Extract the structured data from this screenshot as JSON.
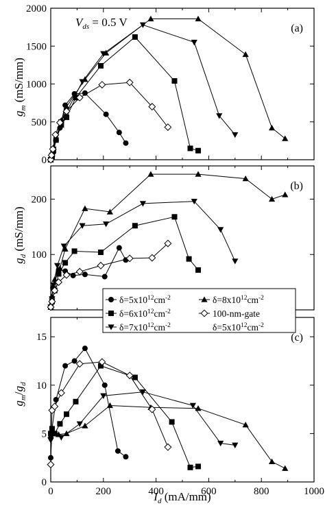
{
  "chart_data": [
    {
      "type": "line",
      "panel_label": "(a)",
      "annotation": "V_ds = 0.5 V",
      "xlabel": "",
      "ylabel": "g_m (mS/mm)",
      "xlim": [
        0,
        1000
      ],
      "ylim": [
        0,
        2000
      ],
      "yticks": [
        "0",
        "500",
        "1000",
        "1500",
        "2000"
      ],
      "series": [
        {
          "name": "δ=5x10¹²cm⁻²",
          "marker": "circle",
          "x": [
            0,
            5,
            10,
            20,
            35,
            55,
            90,
            130,
            210,
            260,
            285
          ],
          "y": [
            0,
            30,
            100,
            260,
            420,
            720,
            870,
            880,
            600,
            360,
            220
          ]
        },
        {
          "name": "δ=6x10¹²cm⁻²",
          "marker": "square",
          "x": [
            0,
            5,
            10,
            20,
            40,
            60,
            95,
            190,
            320,
            470,
            530,
            560
          ],
          "y": [
            0,
            40,
            120,
            260,
            460,
            560,
            820,
            1240,
            1620,
            1040,
            150,
            120
          ]
        },
        {
          "name": "δ=7x10¹²cm⁻²",
          "marker": "triangle-down",
          "x": [
            0,
            5,
            10,
            20,
            40,
            120,
            200,
            350,
            545,
            640,
            700
          ],
          "y": [
            0,
            60,
            140,
            300,
            500,
            1030,
            1400,
            1780,
            1550,
            580,
            330
          ]
        },
        {
          "name": "δ=8x10¹²cm⁻²",
          "marker": "triangle-up",
          "x": [
            0,
            5,
            10,
            20,
            40,
            60,
            130,
            210,
            380,
            560,
            740,
            840,
            890
          ],
          "y": [
            0,
            70,
            160,
            280,
            520,
            700,
            1060,
            1410,
            1860,
            1860,
            1390,
            420,
            280
          ]
        },
        {
          "name": "100-nm-gate δ=5x10¹²cm⁻²",
          "marker": "diamond",
          "x": [
            0,
            3,
            8,
            18,
            35,
            60,
            110,
            195,
            300,
            385,
            445
          ],
          "y": [
            0,
            60,
            140,
            330,
            490,
            640,
            820,
            990,
            1020,
            700,
            430
          ]
        }
      ]
    },
    {
      "type": "line",
      "panel_label": "(b)",
      "xlabel": "",
      "ylabel": "g_d (mS/mm)",
      "xlim": [
        0,
        1000
      ],
      "ylim": [
        0,
        260
      ],
      "yticks": [
        "100",
        "200"
      ],
      "series": [
        {
          "name": "δ=5x10¹²cm⁻²",
          "marker": "circle",
          "x": [
            0,
            8,
            30,
            55,
            85,
            130,
            205,
            260,
            285
          ],
          "y": [
            5,
            40,
            72,
            70,
            62,
            64,
            60,
            112,
            90
          ]
        },
        {
          "name": "δ=6x10¹²cm⁻²",
          "marker": "square",
          "x": [
            0,
            5,
            15,
            30,
            55,
            90,
            190,
            320,
            470,
            525,
            560
          ],
          "y": [
            5,
            15,
            35,
            65,
            85,
            106,
            104,
            152,
            168,
            92,
            72
          ]
        },
        {
          "name": "δ=7x10¹²cm⁻²",
          "marker": "triangle-down",
          "x": [
            0,
            5,
            10,
            25,
            50,
            120,
            210,
            350,
            545,
            645,
            700
          ],
          "y": [
            5,
            20,
            45,
            80,
            115,
            152,
            155,
            192,
            196,
            145,
            88
          ]
        },
        {
          "name": "δ=8x10¹²cm⁻²",
          "marker": "triangle-up",
          "x": [
            0,
            5,
            15,
            35,
            55,
            130,
            225,
            380,
            560,
            740,
            840,
            890
          ],
          "y": [
            5,
            25,
            55,
            75,
            110,
            183,
            177,
            245,
            245,
            237,
            200,
            208
          ]
        },
        {
          "name": "100-nm-gate δ=5x10¹²cm⁻²",
          "marker": "diamond",
          "x": [
            0,
            5,
            15,
            30,
            60,
            110,
            190,
            300,
            385,
            445
          ],
          "y": [
            5,
            15,
            35,
            50,
            63,
            69,
            80,
            93,
            94,
            120
          ]
        }
      ]
    },
    {
      "type": "line",
      "panel_label": "(c)",
      "xlabel": "I_d (mA/mm)",
      "ylabel": "g_m / g_d",
      "xlim": [
        0,
        1000
      ],
      "ylim": [
        0,
        17
      ],
      "xticks": [
        "0",
        "200",
        "400",
        "600",
        "800",
        "1000"
      ],
      "yticks": [
        "0",
        "5",
        "10",
        "15"
      ],
      "series": [
        {
          "name": "δ=5x10¹²cm⁻²",
          "marker": "circle",
          "x": [
            0,
            5,
            20,
            55,
            90,
            130,
            205,
            255,
            285
          ],
          "y": [
            2.5,
            5.5,
            8.5,
            12.0,
            12.5,
            13.8,
            10.0,
            3.2,
            2.6
          ]
        },
        {
          "name": "δ=6x10¹²cm⁻²",
          "marker": "square",
          "x": [
            0,
            5,
            15,
            35,
            60,
            95,
            190,
            320,
            460,
            530,
            560
          ],
          "y": [
            5.0,
            5.5,
            5.0,
            6.0,
            7.0,
            8.3,
            12.0,
            10.8,
            6.2,
            1.5,
            1.6
          ]
        },
        {
          "name": "δ=7x10¹²cm⁻²",
          "marker": "triangle-down",
          "x": [
            0,
            10,
            40,
            110,
            200,
            350,
            540,
            645,
            700
          ],
          "y": [
            4.3,
            5.0,
            4.6,
            6.0,
            8.9,
            9.3,
            7.9,
            4.0,
            3.8
          ]
        },
        {
          "name": "δ=8x10¹²cm⁻²",
          "marker": "triangle-up",
          "x": [
            0,
            10,
            30,
            60,
            130,
            225,
            380,
            560,
            740,
            840,
            890
          ],
          "y": [
            4.8,
            5.2,
            4.9,
            5.0,
            5.8,
            7.9,
            7.7,
            7.6,
            5.9,
            2.1,
            1.4
          ]
        },
        {
          "name": "100-nm-gate δ=5x10¹²cm⁻²",
          "marker": "diamond",
          "x": [
            0,
            5,
            15,
            40,
            110,
            195,
            300,
            385,
            445
          ],
          "y": [
            1.8,
            7.4,
            7.8,
            9.2,
            12.2,
            12.4,
            11.0,
            7.5,
            3.6
          ]
        }
      ]
    }
  ],
  "legend": {
    "placement": "lower-middle of panel (b)",
    "entries": [
      {
        "marker": "circle",
        "prefix": "δ=5x10",
        "exp": "12",
        "unit": "cm",
        "unit_exp": "-2"
      },
      {
        "marker": "triangle-up",
        "prefix": "δ=8x10",
        "exp": "12",
        "unit": "cm",
        "unit_exp": "-2"
      },
      {
        "marker": "square",
        "prefix": "δ=6x10",
        "exp": "12",
        "unit": "cm",
        "unit_exp": "-2"
      },
      {
        "marker": "diamond",
        "prefix": "100-nm-gate",
        "exp": "",
        "unit": "",
        "unit_exp": ""
      },
      {
        "marker": "triangle-down",
        "prefix": "δ=7x10",
        "exp": "12",
        "unit": "cm",
        "unit_exp": "-2"
      },
      {
        "marker": "none",
        "prefix": "δ=5x10",
        "exp": "12",
        "unit": "cm",
        "unit_exp": "-2"
      }
    ]
  },
  "labels": {
    "vds_main": "V",
    "vds_sub": "ds",
    "vds_value": " = 0.5 V",
    "gm_main": "g",
    "gm_sub": "m",
    "gm_unit": " (mS/mm)",
    "gd_main": "g",
    "gd_sub": "d",
    "gd_unit": " (mS/mm)",
    "ratio_slash": "/",
    "id_main": "I",
    "id_sub": "d",
    "id_unit": " (mA/mm)"
  }
}
